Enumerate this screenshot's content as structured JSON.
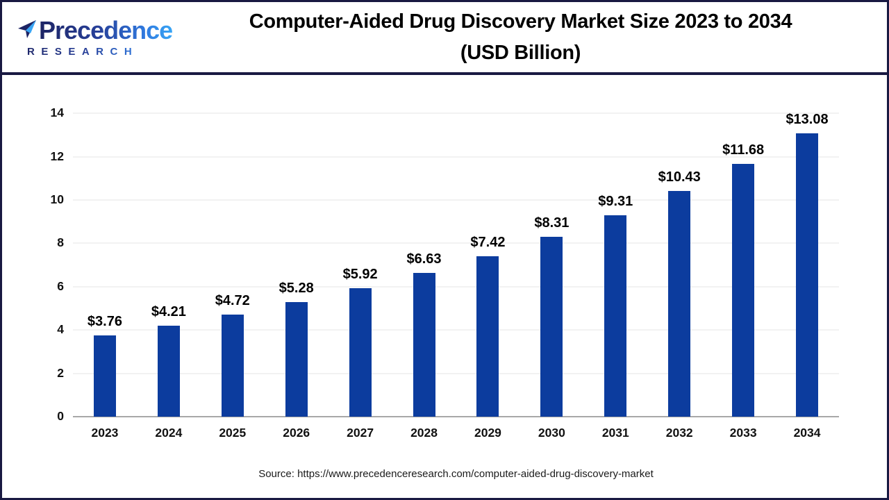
{
  "header": {
    "logo": {
      "line1": "Precedence",
      "line2": "RESEARCH"
    },
    "title_line1": "Computer-Aided Drug Discovery Market Size 2023 to 2034",
    "title_line2": "(USD Billion)"
  },
  "chart_data": {
    "type": "bar",
    "title": "Computer-Aided Drug Discovery Market Size 2023 to 2034 (USD Billion)",
    "categories": [
      "2023",
      "2024",
      "2025",
      "2026",
      "2027",
      "2028",
      "2029",
      "2030",
      "2031",
      "2032",
      "2033",
      "2034"
    ],
    "values": [
      3.76,
      4.21,
      4.72,
      5.28,
      5.92,
      6.63,
      7.42,
      8.31,
      9.31,
      10.43,
      11.68,
      13.08
    ],
    "value_prefix": "$",
    "xlabel": "",
    "ylabel": "",
    "ylim": [
      0,
      14
    ],
    "yticks": [
      0,
      2,
      4,
      6,
      8,
      10,
      12,
      14
    ],
    "grid": "horizontal",
    "legend": "none",
    "bar_color": "#0c3c9e"
  },
  "footer": {
    "source": "Source: https://www.precedenceresearch.com/computer-aided-drug-discovery-market"
  }
}
